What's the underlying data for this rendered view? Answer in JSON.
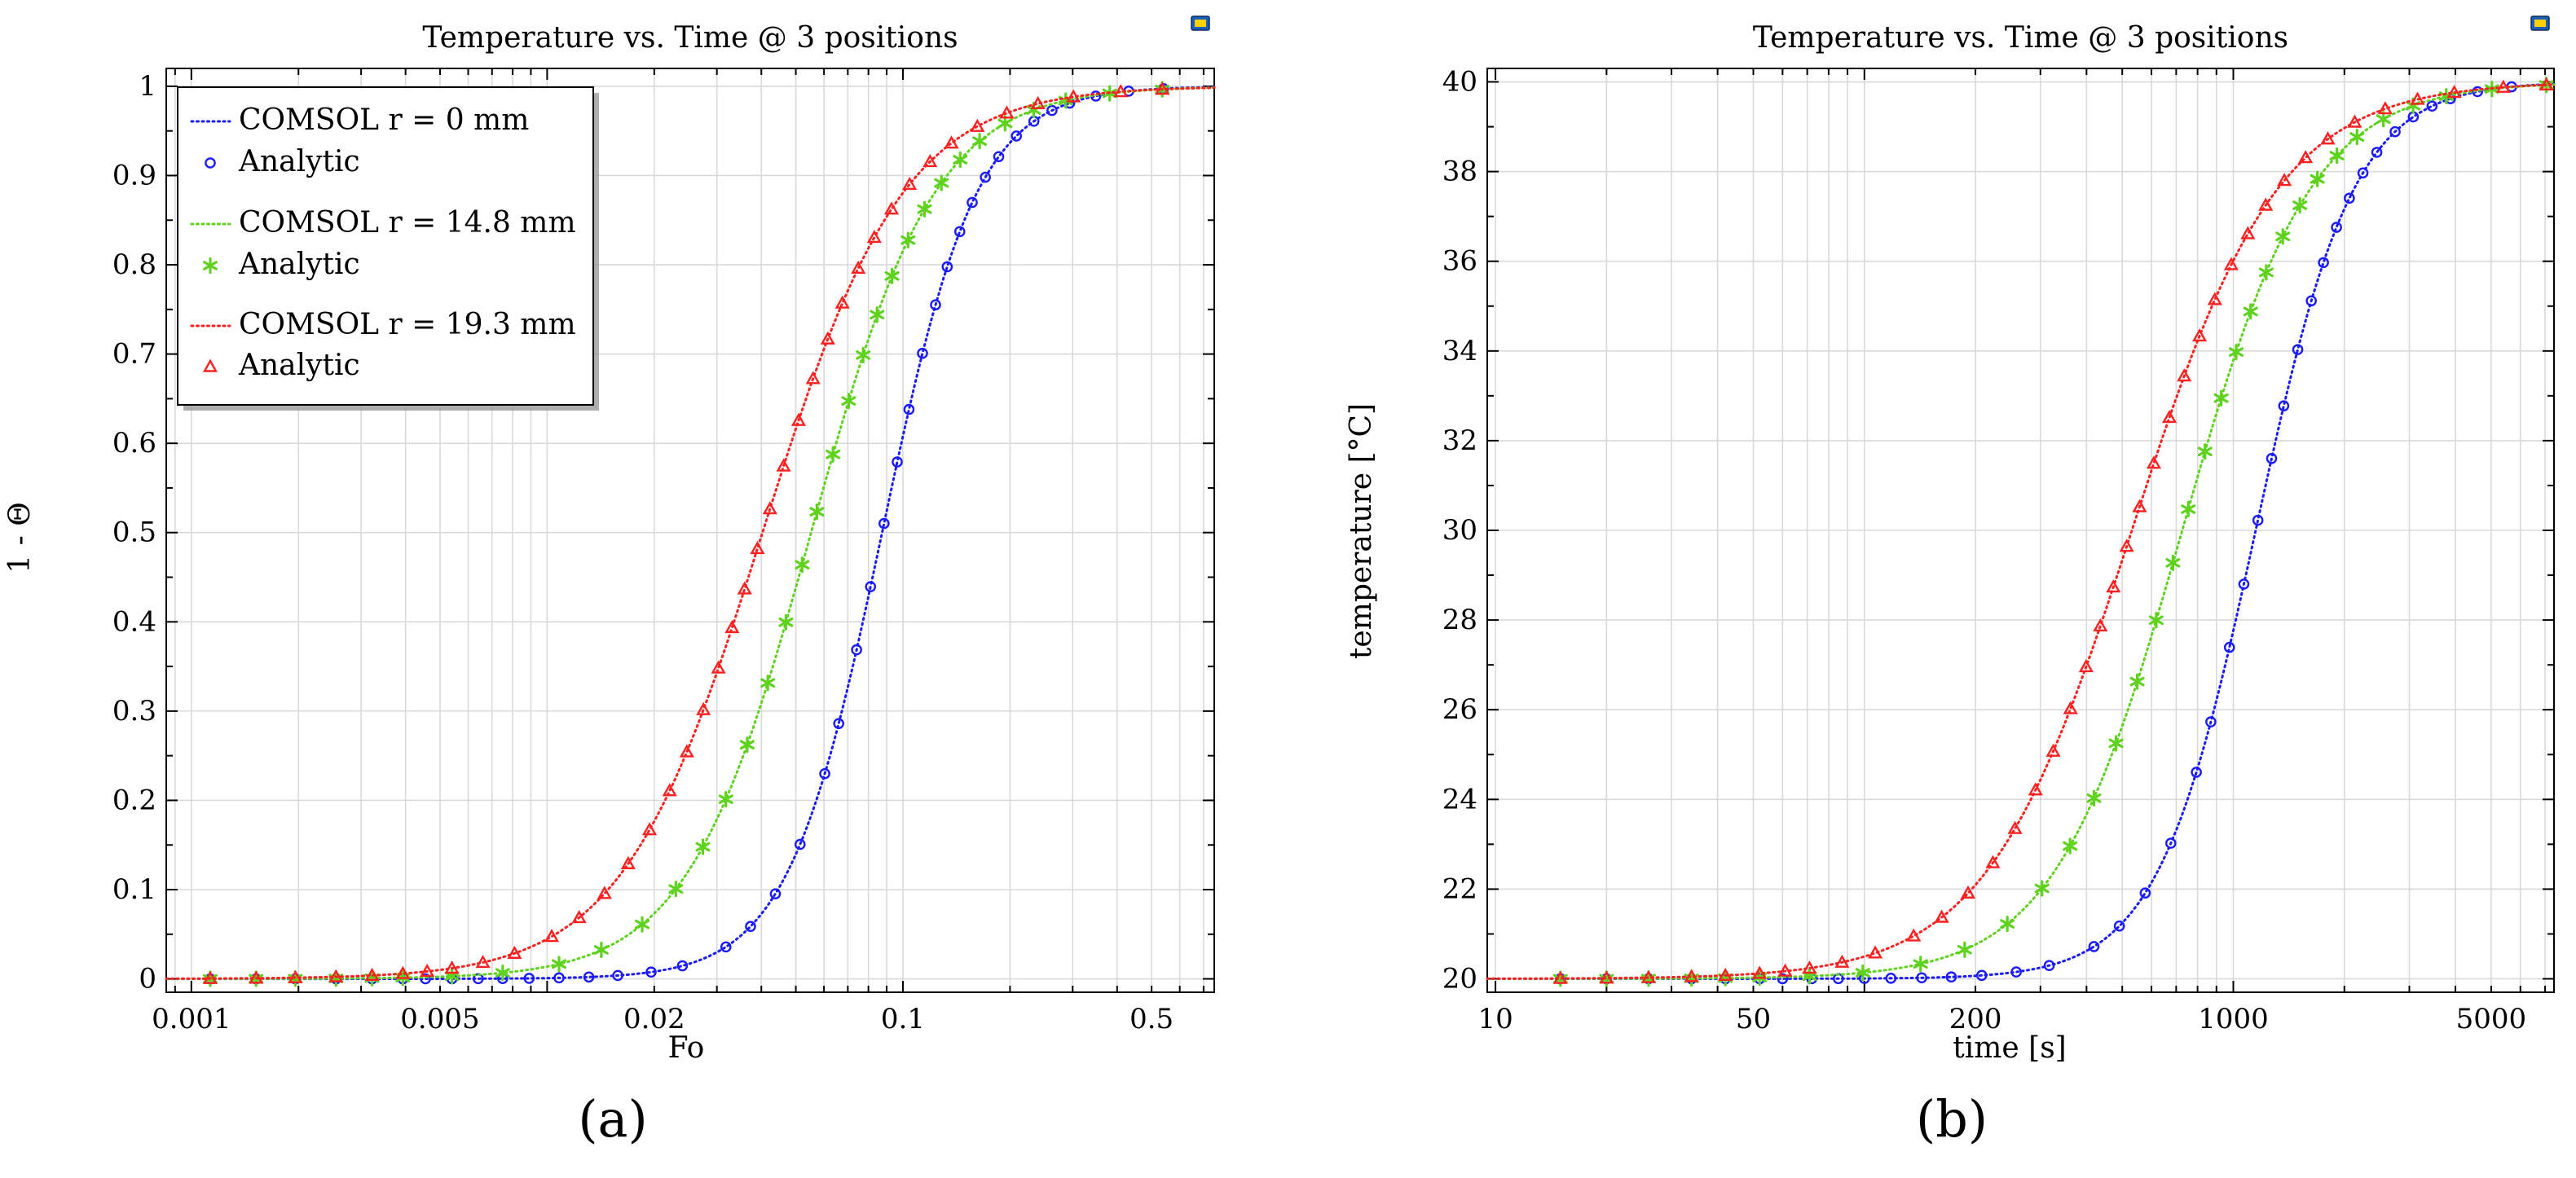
{
  "panels": [
    {
      "id": "a",
      "caption": "(a)",
      "export_icon": "export-icon",
      "chart_data": {
        "type": "line",
        "title": "Temperature vs. Time @ 3 positions",
        "xlabel": "Fo",
        "ylabel": "1 - Θ",
        "xscale": "log",
        "xlim": [
          0.00085,
          0.75
        ],
        "ylim": [
          -0.015,
          1.02
        ],
        "x_ticks": [
          0.001,
          0.005,
          0.02,
          0.1,
          0.5
        ],
        "x_tick_labels": [
          "0.001",
          "0.005",
          "0.02",
          "0.1",
          "0.5"
        ],
        "y_ticks": [
          0,
          0.1,
          0.2,
          0.3,
          0.4,
          0.5,
          0.6,
          0.7,
          0.8,
          0.9,
          1
        ],
        "y_tick_labels": [
          "0",
          "0.1",
          "0.2",
          "0.3",
          "0.4",
          "0.5",
          "0.6",
          "0.7",
          "0.8",
          "0.9",
          "1"
        ],
        "grid": true,
        "legend_position": "top-left",
        "curve_sampling": {
          "x_min": 0.00085,
          "x_max": 0.75
        },
        "series": [
          {
            "name": "COMSOL r = 0 mm",
            "marker_name": "Analytic",
            "color": "#1a1aff",
            "marker": "circle",
            "t_mid": 0.0874,
            "width": 0.307,
            "marker_x": [
              0.00113,
              0.00152,
              0.00196,
              0.00255,
              0.00322,
              0.00393,
              0.00455,
              0.0054,
              0.0064,
              0.0075,
              0.0089,
              0.0108,
              0.0131,
              0.0158,
              0.0196,
              0.024,
              0.0318,
              0.0373,
              0.0438,
              0.0514,
              0.0603,
              0.066,
              0.0741,
              0.0811,
              0.0885,
              0.0964,
              0.104,
              0.1135,
              0.1235,
              0.1332,
              0.1445,
              0.1566,
              0.1705,
              0.1859,
              0.2084,
              0.2334,
              0.2624,
              0.2943,
              0.3485,
              0.4312,
              0.54
            ]
          },
          {
            "name": "COMSOL r = 14.8 mm",
            "marker_name": "Analytic",
            "color": "#5fd21e",
            "marker": "star",
            "t_mid": 0.0552,
            "width": 0.4,
            "marker_x": [
              0.00113,
              0.00152,
              0.00196,
              0.00255,
              0.00322,
              0.00393,
              0.0054,
              0.0075,
              0.0108,
              0.0142,
              0.0185,
              0.023,
              0.0274,
              0.0318,
              0.0365,
              0.0417,
              0.0469,
              0.0521,
              0.0573,
              0.0636,
              0.0704,
              0.0773,
              0.0846,
              0.0932,
              0.1034,
              0.115,
              0.1283,
              0.1449,
              0.1643,
              0.1937,
              0.2331,
              0.2868,
              0.3813,
              0.5357
            ]
          },
          {
            "name": "COMSOL r = 19.3 mm",
            "marker_name": "Analytic",
            "color": "#ff2020",
            "marker": "triangle",
            "t_mid": 0.0403,
            "width": 0.455,
            "marker_x": [
              0.00113,
              0.00152,
              0.00196,
              0.00255,
              0.00322,
              0.00393,
              0.0046,
              0.0054,
              0.0066,
              0.0081,
              0.0103,
              0.0123,
              0.0145,
              0.0169,
              0.0194,
              0.0221,
              0.0247,
              0.0275,
              0.0303,
              0.0331,
              0.0359,
              0.039,
              0.0423,
              0.0462,
              0.0509,
              0.0559,
              0.0615,
              0.0676,
              0.0749,
              0.0831,
              0.0929,
              0.1044,
              0.1192,
              0.1369,
              0.1619,
              0.1959,
              0.2396,
              0.3014,
              0.4095,
              0.5357
            ]
          }
        ]
      }
    },
    {
      "id": "b",
      "caption": "(b)",
      "export_icon": "export-icon",
      "chart_data": {
        "type": "line",
        "title": "Temperature vs. Time @ 3 positions",
        "xlabel": "time [s]",
        "ylabel": "temperature [°C]",
        "xscale": "log",
        "xlim": [
          9.5,
          7400
        ],
        "ylim": [
          19.7,
          40.3
        ],
        "x_ticks": [
          10,
          50,
          200,
          1000,
          5000
        ],
        "x_tick_labels": [
          "10",
          "50",
          "200",
          "1000",
          "5000"
        ],
        "y_ticks": [
          20,
          22,
          24,
          26,
          28,
          30,
          32,
          34,
          36,
          38,
          40
        ],
        "y_tick_labels": [
          "20",
          "22",
          "24",
          "26",
          "28",
          "30",
          "32",
          "34",
          "36",
          "38",
          "40"
        ],
        "grid": true,
        "curve_sampling": {
          "x_min": 9.5,
          "x_max": 7400
        },
        "series": [
          {
            "name": "COMSOL r = 0 mm",
            "color": "#1a1aff",
            "marker": "circle",
            "t_mid": 1150,
            "width": 0.307,
            "marker_x": [
              15,
              20,
              26,
              34,
              42,
              52,
              60,
              72,
              85,
              100,
              118,
              143,
              172,
              208,
              258,
              317,
              419,
              491,
              577,
              677,
              794,
              869,
              976,
              1068,
              1166,
              1270,
              1370,
              1495,
              1627,
              1755,
              1904,
              2063,
              2246,
              2449,
              2745,
              3075,
              3457,
              3877,
              4591,
              5681
            ]
          },
          {
            "name": "COMSOL r = 14.8 mm",
            "color": "#5fd21e",
            "marker": "star",
            "t_mid": 727,
            "width": 0.4,
            "marker_x": [
              15,
              20,
              26,
              34,
              42,
              52,
              71,
              99,
              142,
              187,
              244,
              303,
              361,
              419,
              481,
              549,
              618,
              686,
              755,
              838,
              927,
              1018,
              1114,
              1228,
              1362,
              1515,
              1690,
              1909,
              2164,
              2552,
              3071,
              3778,
              5023,
              7057
            ]
          },
          {
            "name": "COMSOL r = 19.3 mm",
            "color": "#ff2020",
            "marker": "triangle",
            "t_mid": 531,
            "width": 0.455,
            "marker_x": [
              15,
              20,
              26,
              34,
              42,
              52,
              61,
              71,
              87,
              107,
              136,
              162,
              191,
              223,
              256,
              291,
              325,
              362,
              399,
              436,
              473,
              514,
              557,
              609,
              671,
              736,
              810,
              891,
              987,
              1095,
              1224,
              1375,
              1570,
              1804,
              2133,
              2581,
              3157,
              3971,
              5395,
              7057
            ]
          }
        ]
      }
    }
  ]
}
